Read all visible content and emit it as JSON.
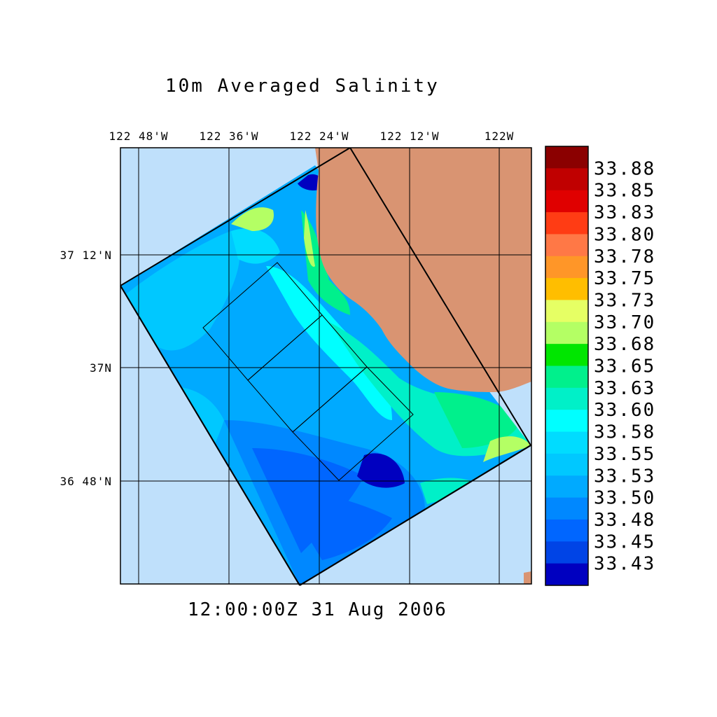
{
  "title": "10m Averaged Salinity",
  "timestamp": "12:00:00Z  31 Aug 2006",
  "lon_labels": [
    "122 48'W",
    "122 36'W",
    "122 24'W",
    "122 12'W",
    "122W"
  ],
  "lat_labels": [
    "37 12'N",
    "37N",
    "36 48'N"
  ],
  "colorbar": {
    "labels": [
      "33.88",
      "33.85",
      "33.83",
      "33.80",
      "33.78",
      "33.75",
      "33.73",
      "33.70",
      "33.68",
      "33.65",
      "33.63",
      "33.60",
      "33.58",
      "33.55",
      "33.53",
      "33.50",
      "33.48",
      "33.45",
      "33.43"
    ],
    "colors_top_to_bottom": [
      "#8b0000",
      "#c00000",
      "#e00000",
      "#ff3c14",
      "#ff7846",
      "#ff9628",
      "#ffbe00",
      "#e6ff64",
      "#b4ff64",
      "#00e600",
      "#00f08c",
      "#00f0c8",
      "#00ffff",
      "#00dcff",
      "#00c8ff",
      "#00aaff",
      "#0088ff",
      "#0066ff",
      "#0044e6",
      "#0000c0"
    ]
  },
  "colors": {
    "ocean": "#bfe0fb",
    "land": "#d99472",
    "frame": "#000000"
  }
}
